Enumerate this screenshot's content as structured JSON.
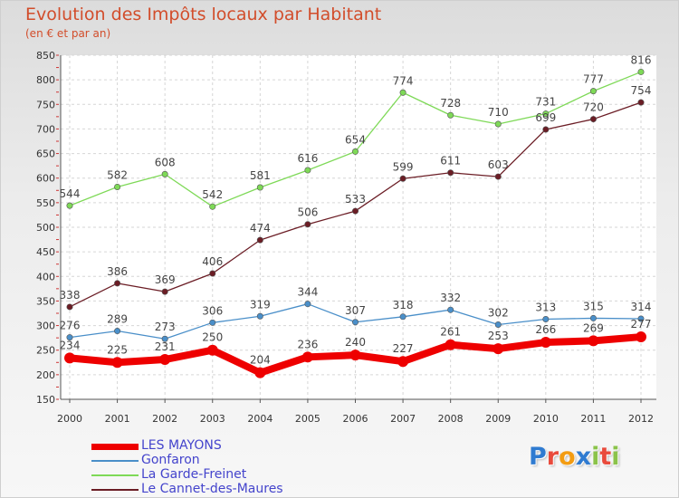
{
  "title": "Evolution des Impôts locaux par Habitant",
  "subtitle": "(en € et par an)",
  "logo": {
    "text": "Proxiti",
    "letter_colors": [
      "#2f7bd1",
      "#e94b3c",
      "#f39c12",
      "#2f7bd1",
      "#8bc34a",
      "#e94b3c",
      "#8bc34a"
    ]
  },
  "chart_data": {
    "type": "line",
    "x": [
      "2000",
      "2001",
      "2002",
      "2003",
      "2004",
      "2005",
      "2006",
      "2007",
      "2008",
      "2009",
      "2010",
      "2011",
      "2012"
    ],
    "ylim": [
      150,
      850
    ],
    "yticks": [
      150,
      200,
      250,
      300,
      350,
      400,
      450,
      500,
      550,
      600,
      650,
      700,
      750,
      800,
      850
    ],
    "grid": true,
    "legend_position": "bottom-left",
    "series": [
      {
        "name": "LES MAYONS",
        "color": "#ee0000",
        "values": [
          234,
          225,
          231,
          250,
          204,
          236,
          240,
          227,
          261,
          253,
          266,
          269,
          277
        ]
      },
      {
        "name": "Gonfaron",
        "color": "#4a8fc9",
        "values": [
          276,
          289,
          273,
          306,
          319,
          344,
          307,
          318,
          332,
          302,
          313,
          315,
          314
        ]
      },
      {
        "name": "La Garde-Freinet",
        "color": "#7ed957",
        "values": [
          544,
          582,
          608,
          542,
          581,
          616,
          654,
          774,
          728,
          710,
          731,
          777,
          816
        ]
      },
      {
        "name": "Le Cannet-des-Maures",
        "color": "#6b1d25",
        "values": [
          338,
          386,
          369,
          406,
          474,
          506,
          533,
          599,
          611,
          603,
          699,
          720,
          754
        ]
      }
    ]
  }
}
